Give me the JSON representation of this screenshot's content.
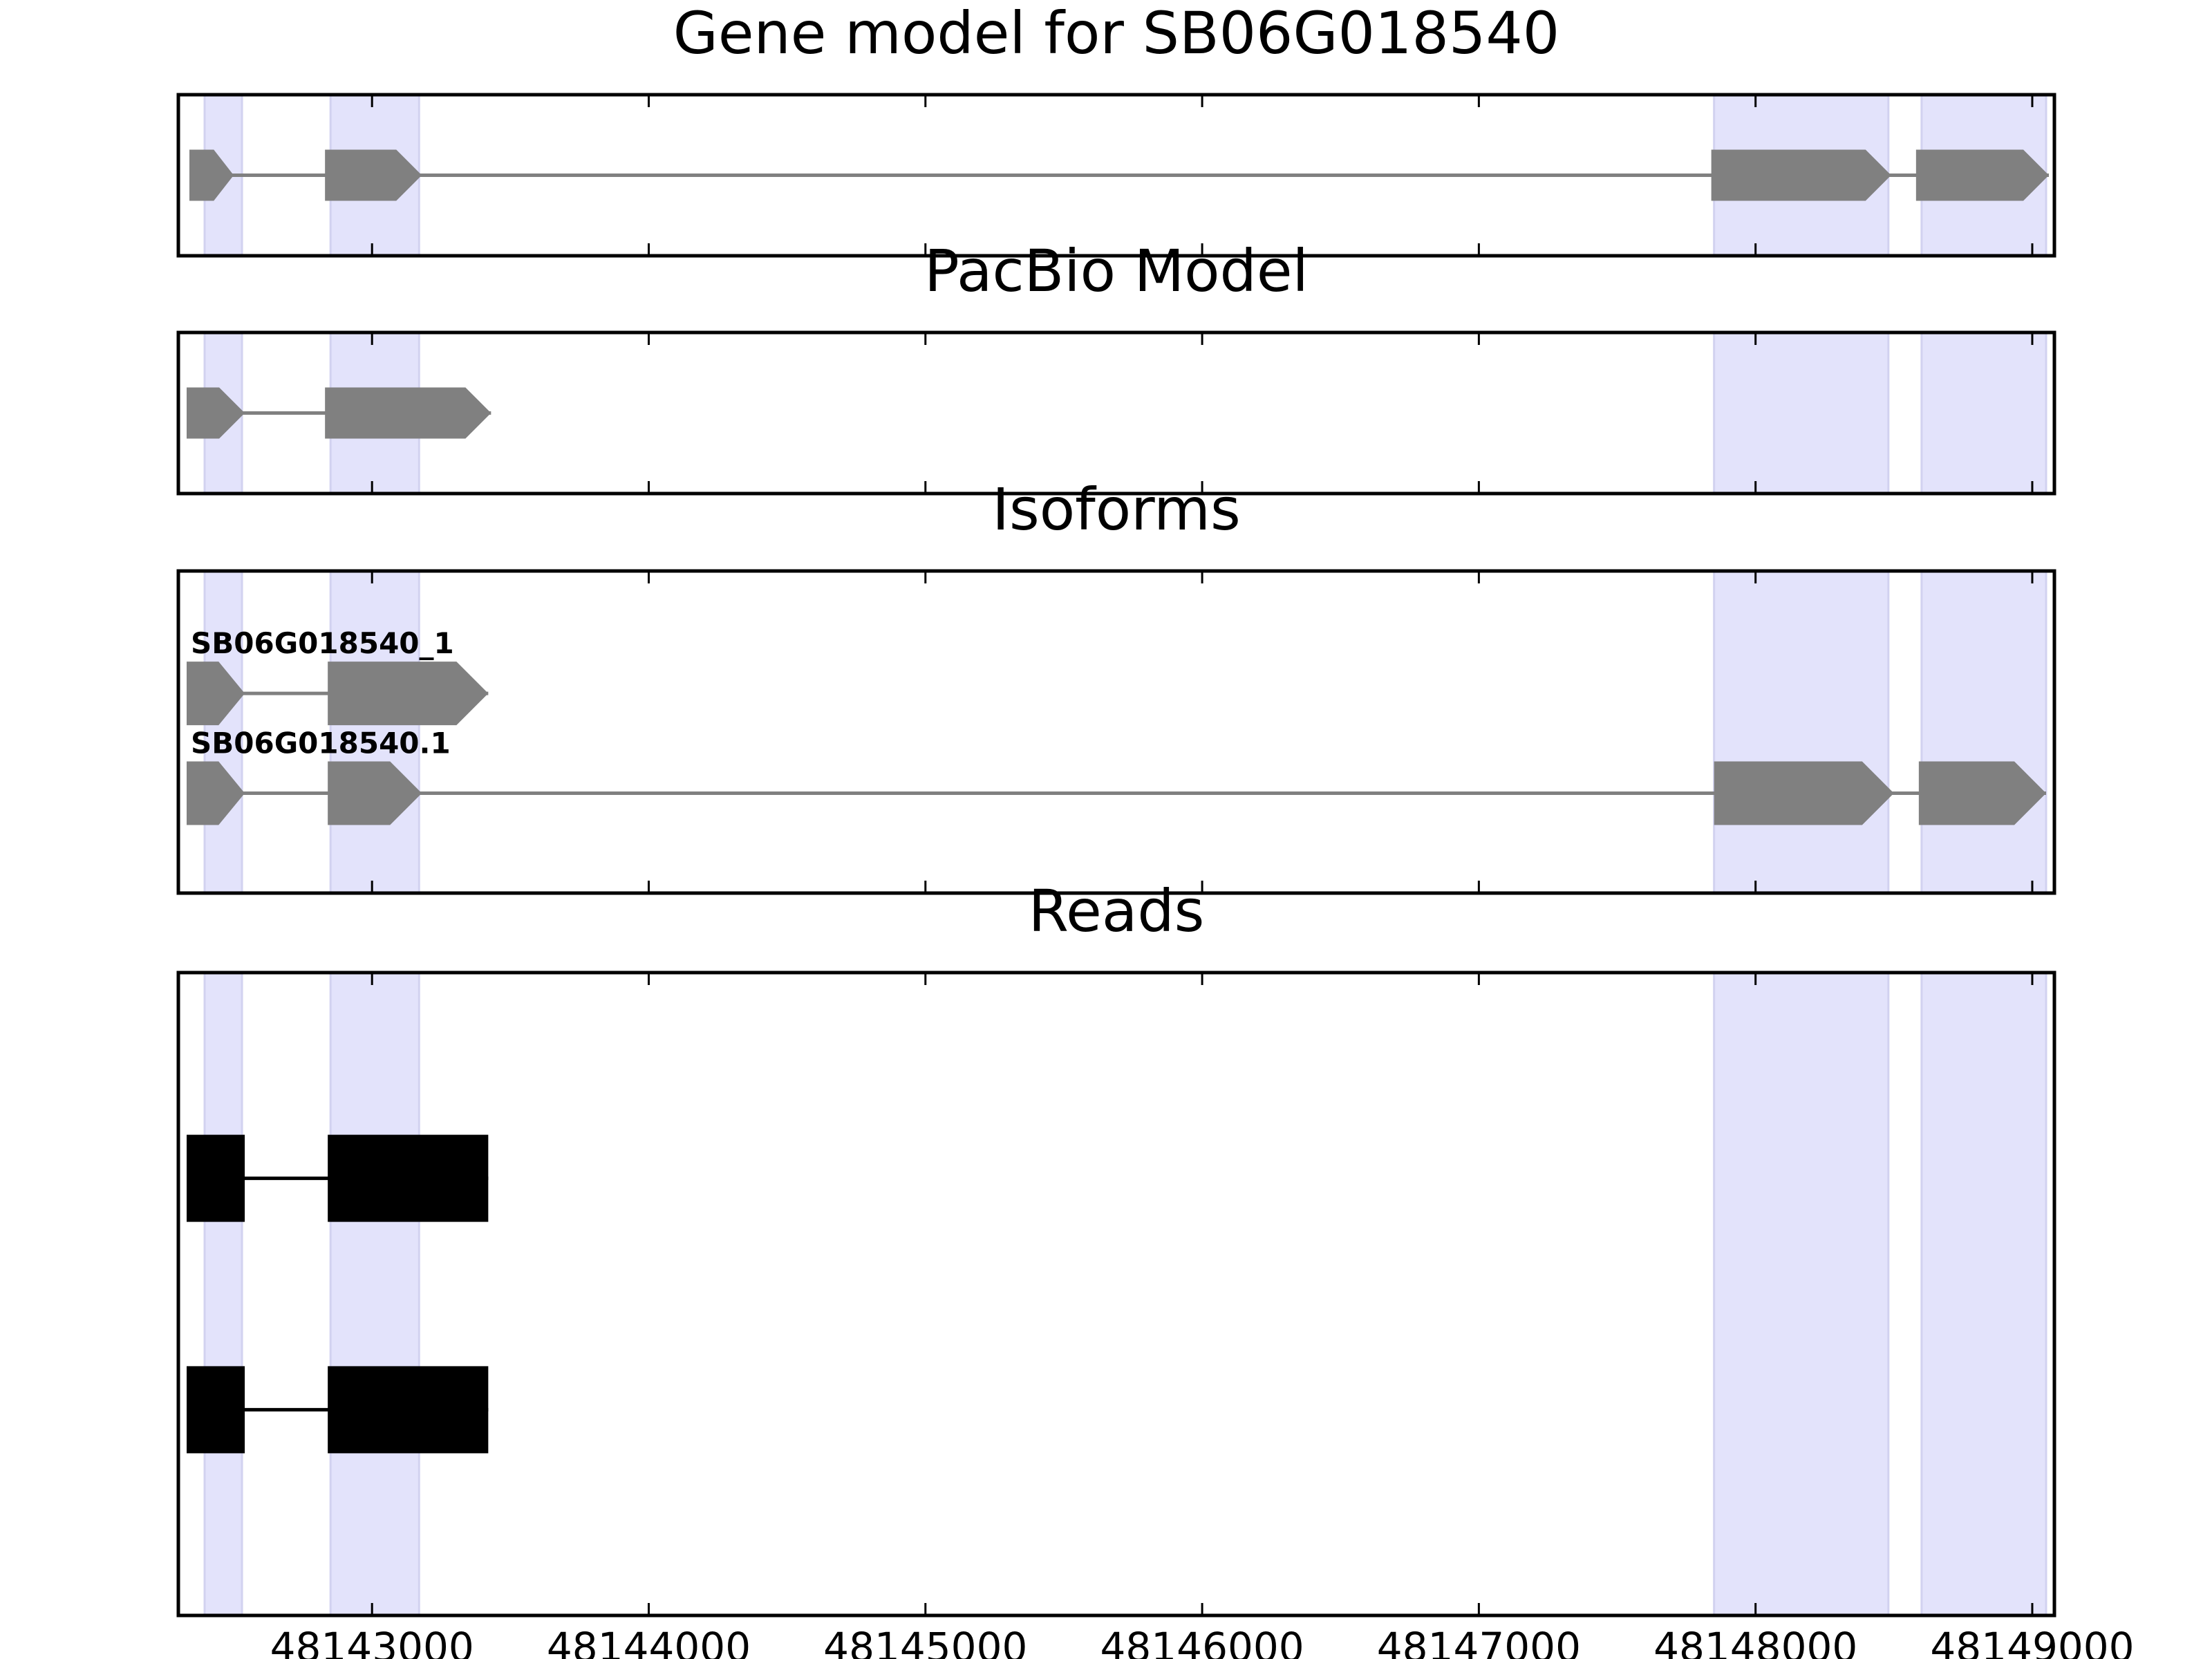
{
  "chart_data": {
    "type": "gene-track",
    "x_axis": {
      "range": [
        48142300,
        48149080
      ],
      "ticks": [
        48143000,
        48144000,
        48145000,
        48146000,
        48147000,
        48148000,
        48149000
      ],
      "tick_labels": [
        "48143000",
        "48144000",
        "48145000",
        "48146000",
        "48147000",
        "48148000",
        "48149000"
      ]
    },
    "shaded_exon_regions": [
      [
        48142395,
        48142530
      ],
      [
        48142850,
        48143170
      ],
      [
        48147850,
        48148480
      ],
      [
        48148600,
        48149050
      ]
    ],
    "colors": {
      "shade": "#e3e3fb",
      "shade_edge": "#d2d2f0",
      "model": "#808080",
      "reads": "#000000",
      "axes": "#000000"
    },
    "panels": [
      {
        "id": "gene-model",
        "title": "Gene model for SB06G018540",
        "tracks": [
          {
            "label": "",
            "strand": "+",
            "y": 0.5,
            "exons": [
              [
                48142340,
                48142500
              ],
              [
                48142830,
                48143180
              ],
              [
                48147840,
                48148490
              ],
              [
                48148580,
                48149060
              ]
            ]
          }
        ]
      },
      {
        "id": "pacbio-model",
        "title": "PacBio Model",
        "tracks": [
          {
            "label": "",
            "strand": "+",
            "y": 0.5,
            "exons": [
              [
                48142330,
                48142540
              ],
              [
                48142830,
                48143430
              ]
            ]
          }
        ]
      },
      {
        "id": "isoforms",
        "title": "Isoforms",
        "tracks": [
          {
            "label": "SB06G018540_1",
            "strand": "+",
            "y": 0.62,
            "exons": [
              [
                48142330,
                48142540
              ],
              [
                48142840,
                48143420
              ]
            ]
          },
          {
            "label": "SB06G018540.1",
            "strand": "+",
            "y": 0.31,
            "exons": [
              [
                48142330,
                48142540
              ],
              [
                48142840,
                48143180
              ],
              [
                48147850,
                48148500
              ],
              [
                48148590,
                48149050
              ]
            ]
          }
        ]
      },
      {
        "id": "reads",
        "title": "Reads",
        "tracks": [
          {
            "label": "",
            "strand": "",
            "y": 0.68,
            "exons": [
              [
                48142330,
                48142540
              ],
              [
                48142840,
                48143420
              ]
            ]
          },
          {
            "label": "",
            "strand": "",
            "y": 0.32,
            "exons": [
              [
                48142330,
                48142540
              ],
              [
                48142840,
                48143420
              ]
            ]
          }
        ]
      }
    ]
  }
}
